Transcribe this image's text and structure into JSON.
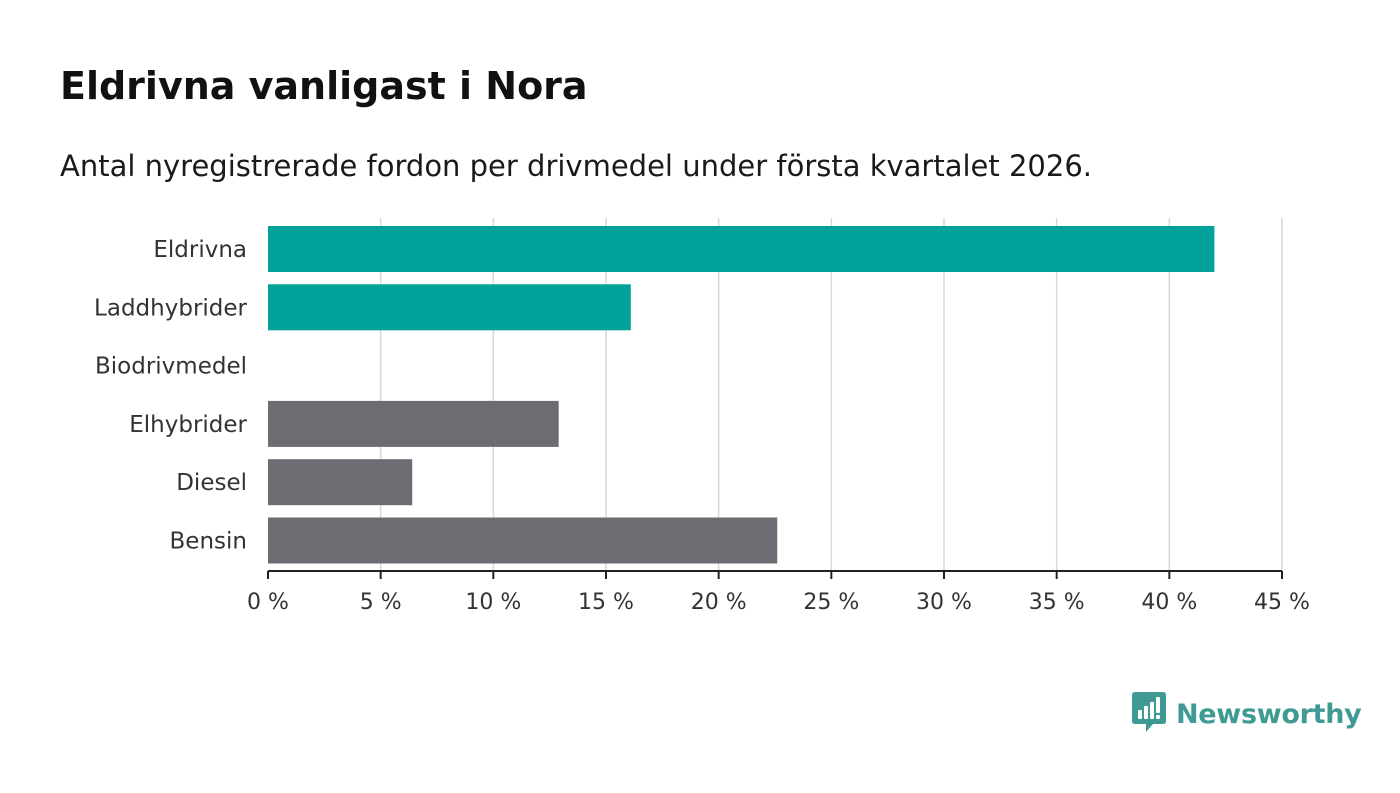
{
  "header": {
    "title": "Eldrivna vanligast i Nora",
    "subtitle": "Antal nyregistrerade fordon per drivmedel under första kvartalet 2026."
  },
  "brand": {
    "name": "Newsworthy",
    "icon": "newsworthy-logo-icon",
    "color": "#3f9a94"
  },
  "colors": {
    "highlight": "#00a29a",
    "other": "#6d6c73",
    "grid": "#d9d9d9",
    "axis": "#222222"
  },
  "chart_data": {
    "type": "bar",
    "orientation": "horizontal",
    "title": "Eldrivna vanligast i Nora",
    "subtitle": "Antal nyregistrerade fordon per drivmedel under första kvartalet 2026.",
    "categories": [
      "Eldrivna",
      "Laddhybrider",
      "Biodrivmedel",
      "Elhybrider",
      "Diesel",
      "Bensin"
    ],
    "values": [
      42.0,
      16.1,
      0,
      12.9,
      6.4,
      22.6
    ],
    "bar_colors": [
      "#00a29a",
      "#00a29a",
      "#00a29a",
      "#6d6c73",
      "#6d6c73",
      "#6d6c73"
    ],
    "unit": "%",
    "xlim": [
      0,
      45
    ],
    "xticks": [
      0,
      5,
      10,
      15,
      20,
      25,
      30,
      35,
      40,
      45
    ],
    "xtick_labels": [
      "0 %",
      "5 %",
      "10 %",
      "15 %",
      "20 %",
      "25 %",
      "30 %",
      "35 %",
      "40 %",
      "45 %"
    ],
    "xlabel": "",
    "ylabel": "",
    "grid": true,
    "legend": "none"
  }
}
